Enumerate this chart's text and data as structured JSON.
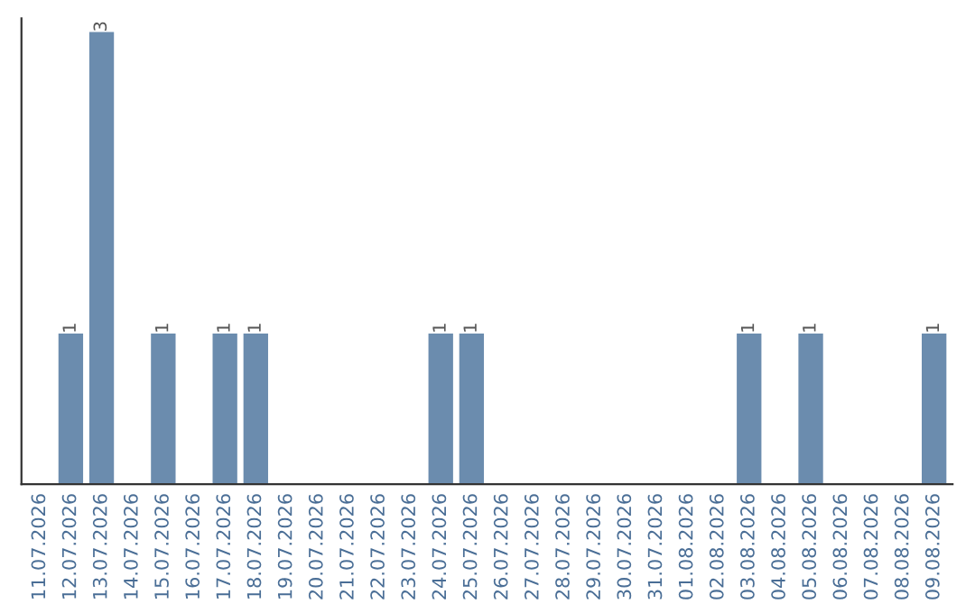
{
  "chart_data": {
    "type": "bar",
    "categories": [
      "11.07.2026",
      "12.07.2026",
      "13.07.2026",
      "14.07.2026",
      "15.07.2026",
      "16.07.2026",
      "17.07.2026",
      "18.07.2026",
      "19.07.2026",
      "20.07.2026",
      "21.07.2026",
      "22.07.2026",
      "23.07.2026",
      "24.07.2026",
      "25.07.2026",
      "26.07.2026",
      "27.07.2026",
      "28.07.2026",
      "29.07.2026",
      "30.07.2026",
      "31.07.2026",
      "01.08.2026",
      "02.08.2026",
      "03.08.2026",
      "04.08.2026",
      "05.08.2026",
      "06.08.2026",
      "07.08.2026",
      "08.08.2026",
      "09.08.2026"
    ],
    "values": [
      0,
      1,
      3,
      0,
      1,
      0,
      1,
      1,
      0,
      0,
      0,
      0,
      0,
      1,
      1,
      0,
      0,
      0,
      0,
      0,
      0,
      0,
      0,
      1,
      0,
      1,
      0,
      0,
      0,
      1
    ],
    "value_labels": [
      null,
      "1",
      "3",
      null,
      "1",
      null,
      "1",
      "1",
      null,
      null,
      null,
      null,
      null,
      "1",
      "1",
      null,
      null,
      null,
      null,
      null,
      null,
      null,
      null,
      "1",
      null,
      "1",
      null,
      null,
      null,
      "1"
    ],
    "color": "#6b8cae",
    "tick_labels": "x",
    "grid": false,
    "legend": false
  }
}
